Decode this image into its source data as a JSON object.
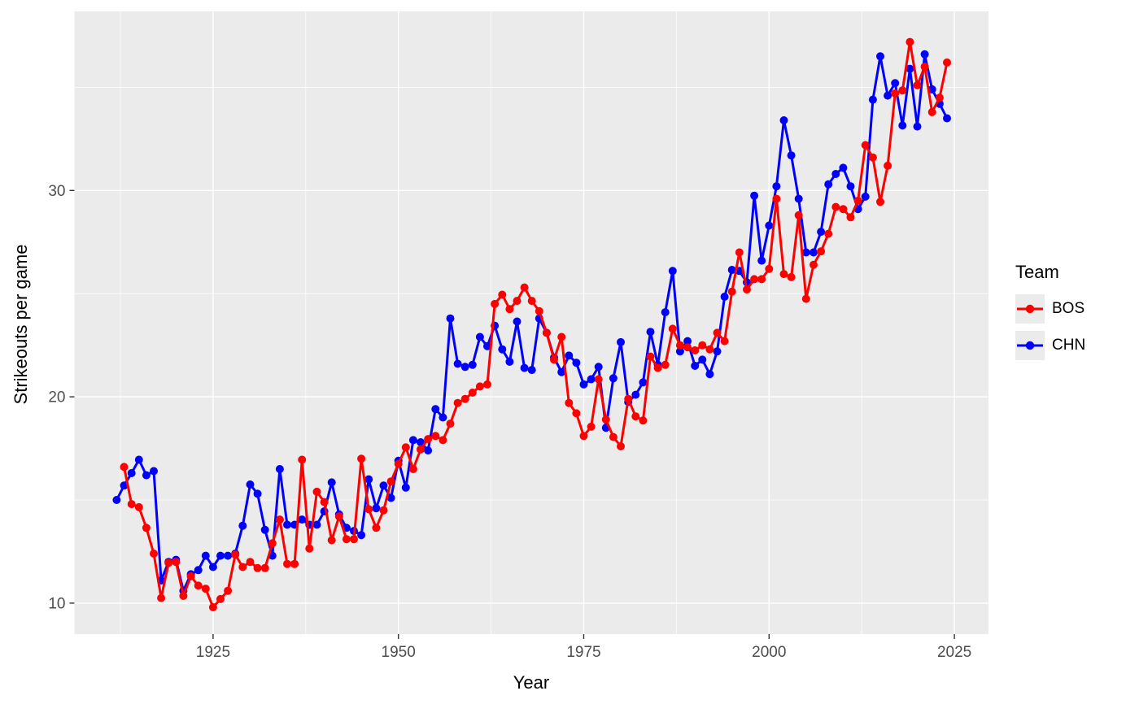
{
  "chart_data": {
    "type": "line",
    "title": "",
    "xlabel": "Year",
    "ylabel": "Strikeouts per game",
    "xlim": [
      1906.3,
      2029.6
    ],
    "ylim": [
      8.5,
      38.68
    ],
    "x_ticks": [
      1925,
      1950,
      1975,
      2000,
      2025
    ],
    "x_minor_gridlines": [
      1912.5,
      1937.5,
      1962.5,
      1987.5,
      2012.5
    ],
    "y_ticks": [
      10,
      20,
      30
    ],
    "y_minor_gridlines": [
      15,
      25,
      35
    ],
    "grid": "white gridlines on gray panel",
    "panel_bg": "#EBEBEB",
    "grid_color": "#FFFFFF",
    "tick_label_color": "#4D4D4D",
    "tick_mark_color": "#333333",
    "legend": {
      "title": "Team",
      "position": "right",
      "items": [
        {
          "label": "BOS",
          "color": "#FF0000"
        },
        {
          "label": "CHN",
          "color": "#0000FF"
        }
      ]
    },
    "series": [
      {
        "name": "CHN",
        "color": "#0000FF",
        "points": [
          [
            1912,
            15.0
          ],
          [
            1913,
            15.7
          ],
          [
            1914,
            16.3
          ],
          [
            1915,
            16.95
          ],
          [
            1916,
            16.2
          ],
          [
            1917,
            16.4
          ],
          [
            1918,
            11.1
          ],
          [
            1919,
            12.0
          ],
          [
            1920,
            12.1
          ],
          [
            1921,
            10.6
          ],
          [
            1922,
            11.4
          ],
          [
            1923,
            11.6
          ],
          [
            1924,
            12.3
          ],
          [
            1925,
            11.75
          ],
          [
            1926,
            12.3
          ],
          [
            1927,
            12.3
          ],
          [
            1928,
            12.4
          ],
          [
            1929,
            13.75
          ],
          [
            1930,
            15.75
          ],
          [
            1931,
            15.3
          ],
          [
            1932,
            13.55
          ],
          [
            1933,
            12.3
          ],
          [
            1934,
            16.5
          ],
          [
            1935,
            13.8
          ],
          [
            1936,
            13.8
          ],
          [
            1937,
            14.05
          ],
          [
            1938,
            13.8
          ],
          [
            1939,
            13.8
          ],
          [
            1940,
            14.45
          ],
          [
            1941,
            15.85
          ],
          [
            1942,
            14.3
          ],
          [
            1943,
            13.65
          ],
          [
            1944,
            13.5
          ],
          [
            1945,
            13.3
          ],
          [
            1946,
            16.0
          ],
          [
            1947,
            14.6
          ],
          [
            1948,
            15.7
          ],
          [
            1949,
            15.1
          ],
          [
            1950,
            16.9
          ],
          [
            1951,
            15.6
          ],
          [
            1952,
            17.9
          ],
          [
            1953,
            17.8
          ],
          [
            1954,
            17.4
          ],
          [
            1955,
            19.4
          ],
          [
            1956,
            19.0
          ],
          [
            1957,
            23.8
          ],
          [
            1958,
            21.6
          ],
          [
            1959,
            21.45
          ],
          [
            1960,
            21.55
          ],
          [
            1961,
            22.9
          ],
          [
            1962,
            22.45
          ],
          [
            1963,
            23.45
          ],
          [
            1964,
            22.3
          ],
          [
            1965,
            21.7
          ],
          [
            1966,
            23.65
          ],
          [
            1967,
            21.4
          ],
          [
            1968,
            21.3
          ],
          [
            1969,
            23.8
          ],
          [
            1970,
            23.1
          ],
          [
            1971,
            21.9
          ],
          [
            1972,
            21.2
          ],
          [
            1973,
            22.0
          ],
          [
            1974,
            21.65
          ],
          [
            1975,
            20.6
          ],
          [
            1976,
            20.85
          ],
          [
            1977,
            21.45
          ],
          [
            1978,
            18.5
          ],
          [
            1979,
            20.9
          ],
          [
            1980,
            22.65
          ],
          [
            1981,
            19.75
          ],
          [
            1982,
            20.1
          ],
          [
            1983,
            20.7
          ],
          [
            1984,
            23.15
          ],
          [
            1985,
            21.55
          ],
          [
            1986,
            24.1
          ],
          [
            1987,
            26.1
          ],
          [
            1988,
            22.2
          ],
          [
            1989,
            22.7
          ],
          [
            1990,
            21.5
          ],
          [
            1991,
            21.8
          ],
          [
            1992,
            21.1
          ],
          [
            1993,
            22.2
          ],
          [
            1994,
            24.85
          ],
          [
            1995,
            26.15
          ],
          [
            1996,
            26.1
          ],
          [
            1997,
            25.55
          ],
          [
            1998,
            29.75
          ],
          [
            1999,
            26.6
          ],
          [
            2000,
            28.3
          ],
          [
            2001,
            30.2
          ],
          [
            2002,
            33.4
          ],
          [
            2003,
            31.7
          ],
          [
            2004,
            29.6
          ],
          [
            2005,
            27.0
          ],
          [
            2006,
            27.0
          ],
          [
            2007,
            28.0
          ],
          [
            2008,
            30.3
          ],
          [
            2009,
            30.8
          ],
          [
            2010,
            31.1
          ],
          [
            2011,
            30.2
          ],
          [
            2012,
            29.1
          ],
          [
            2013,
            29.7
          ],
          [
            2014,
            34.4
          ],
          [
            2015,
            36.5
          ],
          [
            2016,
            34.6
          ],
          [
            2017,
            35.2
          ],
          [
            2018,
            33.15
          ],
          [
            2019,
            35.9
          ],
          [
            2020,
            33.1
          ],
          [
            2021,
            36.6
          ],
          [
            2022,
            34.9
          ],
          [
            2023,
            34.2
          ],
          [
            2024,
            33.5
          ]
        ]
      },
      {
        "name": "BOS",
        "color": "#FF0000",
        "points": [
          [
            1913,
            16.6
          ],
          [
            1914,
            14.8
          ],
          [
            1915,
            14.65
          ],
          [
            1916,
            13.65
          ],
          [
            1917,
            12.4
          ],
          [
            1918,
            10.25
          ],
          [
            1919,
            11.95
          ],
          [
            1920,
            12.0
          ],
          [
            1921,
            10.35
          ],
          [
            1922,
            11.3
          ],
          [
            1923,
            10.85
          ],
          [
            1924,
            10.7
          ],
          [
            1925,
            9.8
          ],
          [
            1926,
            10.2
          ],
          [
            1927,
            10.6
          ],
          [
            1928,
            12.35
          ],
          [
            1929,
            11.75
          ],
          [
            1930,
            12.0
          ],
          [
            1931,
            11.7
          ],
          [
            1932,
            11.7
          ],
          [
            1933,
            12.9
          ],
          [
            1934,
            14.05
          ],
          [
            1935,
            11.9
          ],
          [
            1936,
            11.9
          ],
          [
            1937,
            16.95
          ],
          [
            1938,
            12.65
          ],
          [
            1939,
            15.4
          ],
          [
            1940,
            14.9
          ],
          [
            1941,
            13.05
          ],
          [
            1942,
            14.2
          ],
          [
            1943,
            13.1
          ],
          [
            1944,
            13.1
          ],
          [
            1945,
            17.0
          ],
          [
            1946,
            14.55
          ],
          [
            1947,
            13.65
          ],
          [
            1948,
            14.5
          ],
          [
            1949,
            15.9
          ],
          [
            1950,
            16.75
          ],
          [
            1951,
            17.55
          ],
          [
            1952,
            16.5
          ],
          [
            1953,
            17.45
          ],
          [
            1954,
            17.95
          ],
          [
            1955,
            18.1
          ],
          [
            1956,
            17.9
          ],
          [
            1957,
            18.7
          ],
          [
            1958,
            19.7
          ],
          [
            1959,
            19.9
          ],
          [
            1960,
            20.2
          ],
          [
            1961,
            20.5
          ],
          [
            1962,
            20.6
          ],
          [
            1963,
            24.5
          ],
          [
            1964,
            24.95
          ],
          [
            1965,
            24.25
          ],
          [
            1966,
            24.65
          ],
          [
            1967,
            25.3
          ],
          [
            1968,
            24.65
          ],
          [
            1969,
            24.15
          ],
          [
            1970,
            23.1
          ],
          [
            1971,
            21.8
          ],
          [
            1972,
            22.9
          ],
          [
            1973,
            19.7
          ],
          [
            1974,
            19.2
          ],
          [
            1975,
            18.1
          ],
          [
            1976,
            18.55
          ],
          [
            1977,
            20.85
          ],
          [
            1978,
            18.9
          ],
          [
            1979,
            18.05
          ],
          [
            1980,
            17.6
          ],
          [
            1981,
            19.9
          ],
          [
            1982,
            19.05
          ],
          [
            1983,
            18.85
          ],
          [
            1984,
            21.95
          ],
          [
            1985,
            21.4
          ],
          [
            1986,
            21.55
          ],
          [
            1987,
            23.3
          ],
          [
            1988,
            22.5
          ],
          [
            1989,
            22.4
          ],
          [
            1990,
            22.25
          ],
          [
            1991,
            22.5
          ],
          [
            1992,
            22.3
          ],
          [
            1993,
            23.1
          ],
          [
            1994,
            22.7
          ],
          [
            1995,
            25.1
          ],
          [
            1996,
            27.0
          ],
          [
            1997,
            25.2
          ],
          [
            1998,
            25.7
          ],
          [
            1999,
            25.7
          ],
          [
            2000,
            26.2
          ],
          [
            2001,
            29.6
          ],
          [
            2002,
            25.95
          ],
          [
            2003,
            25.8
          ],
          [
            2004,
            28.8
          ],
          [
            2005,
            24.75
          ],
          [
            2006,
            26.4
          ],
          [
            2007,
            27.05
          ],
          [
            2008,
            27.9
          ],
          [
            2009,
            29.2
          ],
          [
            2010,
            29.1
          ],
          [
            2011,
            28.7
          ],
          [
            2012,
            29.5
          ],
          [
            2013,
            32.2
          ],
          [
            2014,
            31.6
          ],
          [
            2015,
            29.45
          ],
          [
            2016,
            31.2
          ],
          [
            2017,
            34.7
          ],
          [
            2018,
            34.85
          ],
          [
            2019,
            37.2
          ],
          [
            2020,
            35.1
          ],
          [
            2021,
            36.0
          ],
          [
            2022,
            33.8
          ],
          [
            2023,
            34.5
          ],
          [
            2024,
            36.2
          ]
        ]
      }
    ]
  }
}
